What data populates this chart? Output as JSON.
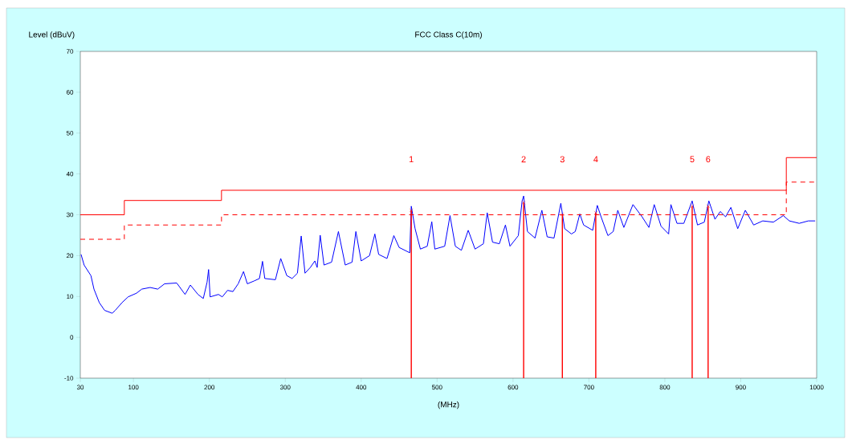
{
  "chart_data": {
    "type": "line",
    "title": "FCC Class C(10m)",
    "xlabel": "(MHz)",
    "ylabel": "Level (dBuV)",
    "xlim": [
      30,
      1000
    ],
    "ylim": [
      -10,
      70
    ],
    "xticks": [
      30,
      100,
      200,
      300,
      400,
      500,
      600,
      700,
      800,
      900,
      1000
    ],
    "yticks": [
      -10,
      0,
      10,
      20,
      30,
      40,
      50,
      60,
      70
    ],
    "series": [
      {
        "color": "#0000ff",
        "x": [
          31,
          35,
          44,
          48,
          55,
          62,
          72,
          76,
          85,
          93,
          104,
          111,
          122,
          132,
          141,
          157,
          168,
          175,
          185,
          192,
          197,
          199,
          201,
          212,
          217,
          224,
          231,
          238,
          245,
          250,
          259,
          266,
          270,
          273,
          287,
          294,
          302,
          309,
          316,
          321,
          326,
          333,
          339,
          342,
          346,
          351,
          361,
          370,
          379,
          388,
          393,
          400,
          411,
          418,
          423,
          434,
          443,
          450,
          464,
          466,
          471,
          478,
          487,
          493,
          497,
          510,
          517,
          524,
          532,
          541,
          550,
          561,
          566,
          573,
          582,
          590,
          596,
          607,
          612,
          614,
          619,
          629,
          638,
          645,
          654,
          663,
          668,
          677,
          682,
          688,
          693,
          705,
          711,
          716,
          725,
          732,
          738,
          746,
          758,
          770,
          779,
          786,
          795,
          805,
          808,
          816,
          825,
          836,
          843,
          852,
          858,
          866,
          873,
          880,
          887,
          896,
          906,
          917,
          929,
          943,
          956,
          964,
          977,
          989,
          998
        ],
        "values": [
          20.3,
          17.7,
          15.1,
          11.8,
          8.5,
          6.6,
          5.9,
          6.6,
          8.5,
          9.9,
          10.8,
          11.8,
          12.2,
          11.8,
          13.1,
          13.3,
          10.5,
          12.8,
          10.5,
          9.5,
          13.5,
          16.6,
          9.9,
          10.5,
          9.9,
          11.5,
          11.2,
          13.1,
          16.1,
          13.1,
          13.8,
          14.4,
          18.6,
          14.4,
          14.1,
          19.3,
          15.1,
          14.4,
          15.7,
          24.8,
          15.7,
          17.1,
          18.7,
          17.1,
          25.0,
          17.7,
          18.4,
          25.9,
          17.7,
          18.4,
          25.9,
          18.7,
          20.0,
          25.3,
          20.3,
          19.3,
          24.9,
          22.0,
          20.7,
          32.1,
          26.6,
          21.6,
          22.3,
          28.3,
          21.6,
          22.3,
          29.8,
          22.3,
          21.3,
          26.2,
          21.6,
          22.9,
          30.5,
          23.3,
          22.9,
          27.5,
          22.3,
          24.9,
          33.4,
          34.6,
          25.9,
          24.3,
          31.1,
          24.6,
          24.3,
          32.8,
          26.6,
          25.3,
          25.9,
          30.2,
          27.5,
          26.2,
          32.3,
          29.5,
          24.9,
          25.9,
          31.1,
          26.9,
          32.5,
          29.5,
          26.9,
          32.5,
          27.2,
          25.3,
          32.5,
          27.9,
          27.9,
          33.4,
          27.5,
          28.2,
          33.4,
          28.9,
          30.8,
          29.5,
          31.8,
          26.6,
          31.1,
          27.5,
          28.5,
          28.2,
          29.8,
          28.5,
          27.9,
          28.5,
          28.5
        ]
      },
      {
        "type": "step",
        "color": "#ff0000",
        "line_style": "solid",
        "x": [
          30,
          88,
          216,
          960,
          1000
        ],
        "values": [
          30,
          33.5,
          36,
          44,
          44
        ]
      },
      {
        "type": "step",
        "color": "#ff0000",
        "line_style": "dashed",
        "x": [
          30,
          88,
          216,
          960,
          1000
        ],
        "values": [
          24,
          27.5,
          30,
          38,
          38
        ]
      },
      {
        "type": "bar",
        "color": "#ff0000",
        "x": [
          466,
          614,
          665,
          709,
          836,
          857
        ],
        "base": [
          -10,
          -10,
          -10,
          -10,
          -10,
          -10
        ],
        "values": [
          41.1,
          43.0,
          40.1,
          40.5,
          42.1,
          42.1
        ]
      },
      {
        "type": "scatter",
        "color": "#ff0000",
        "marker": "cross",
        "x": [
          466,
          614,
          665,
          709,
          836,
          857
        ],
        "values": [
          31.1,
          33.0,
          30.1,
          30.5,
          32.1,
          32.1
        ]
      }
    ],
    "annotations": [
      "1",
      "2",
      "3",
      "4",
      "5",
      "6"
    ]
  }
}
